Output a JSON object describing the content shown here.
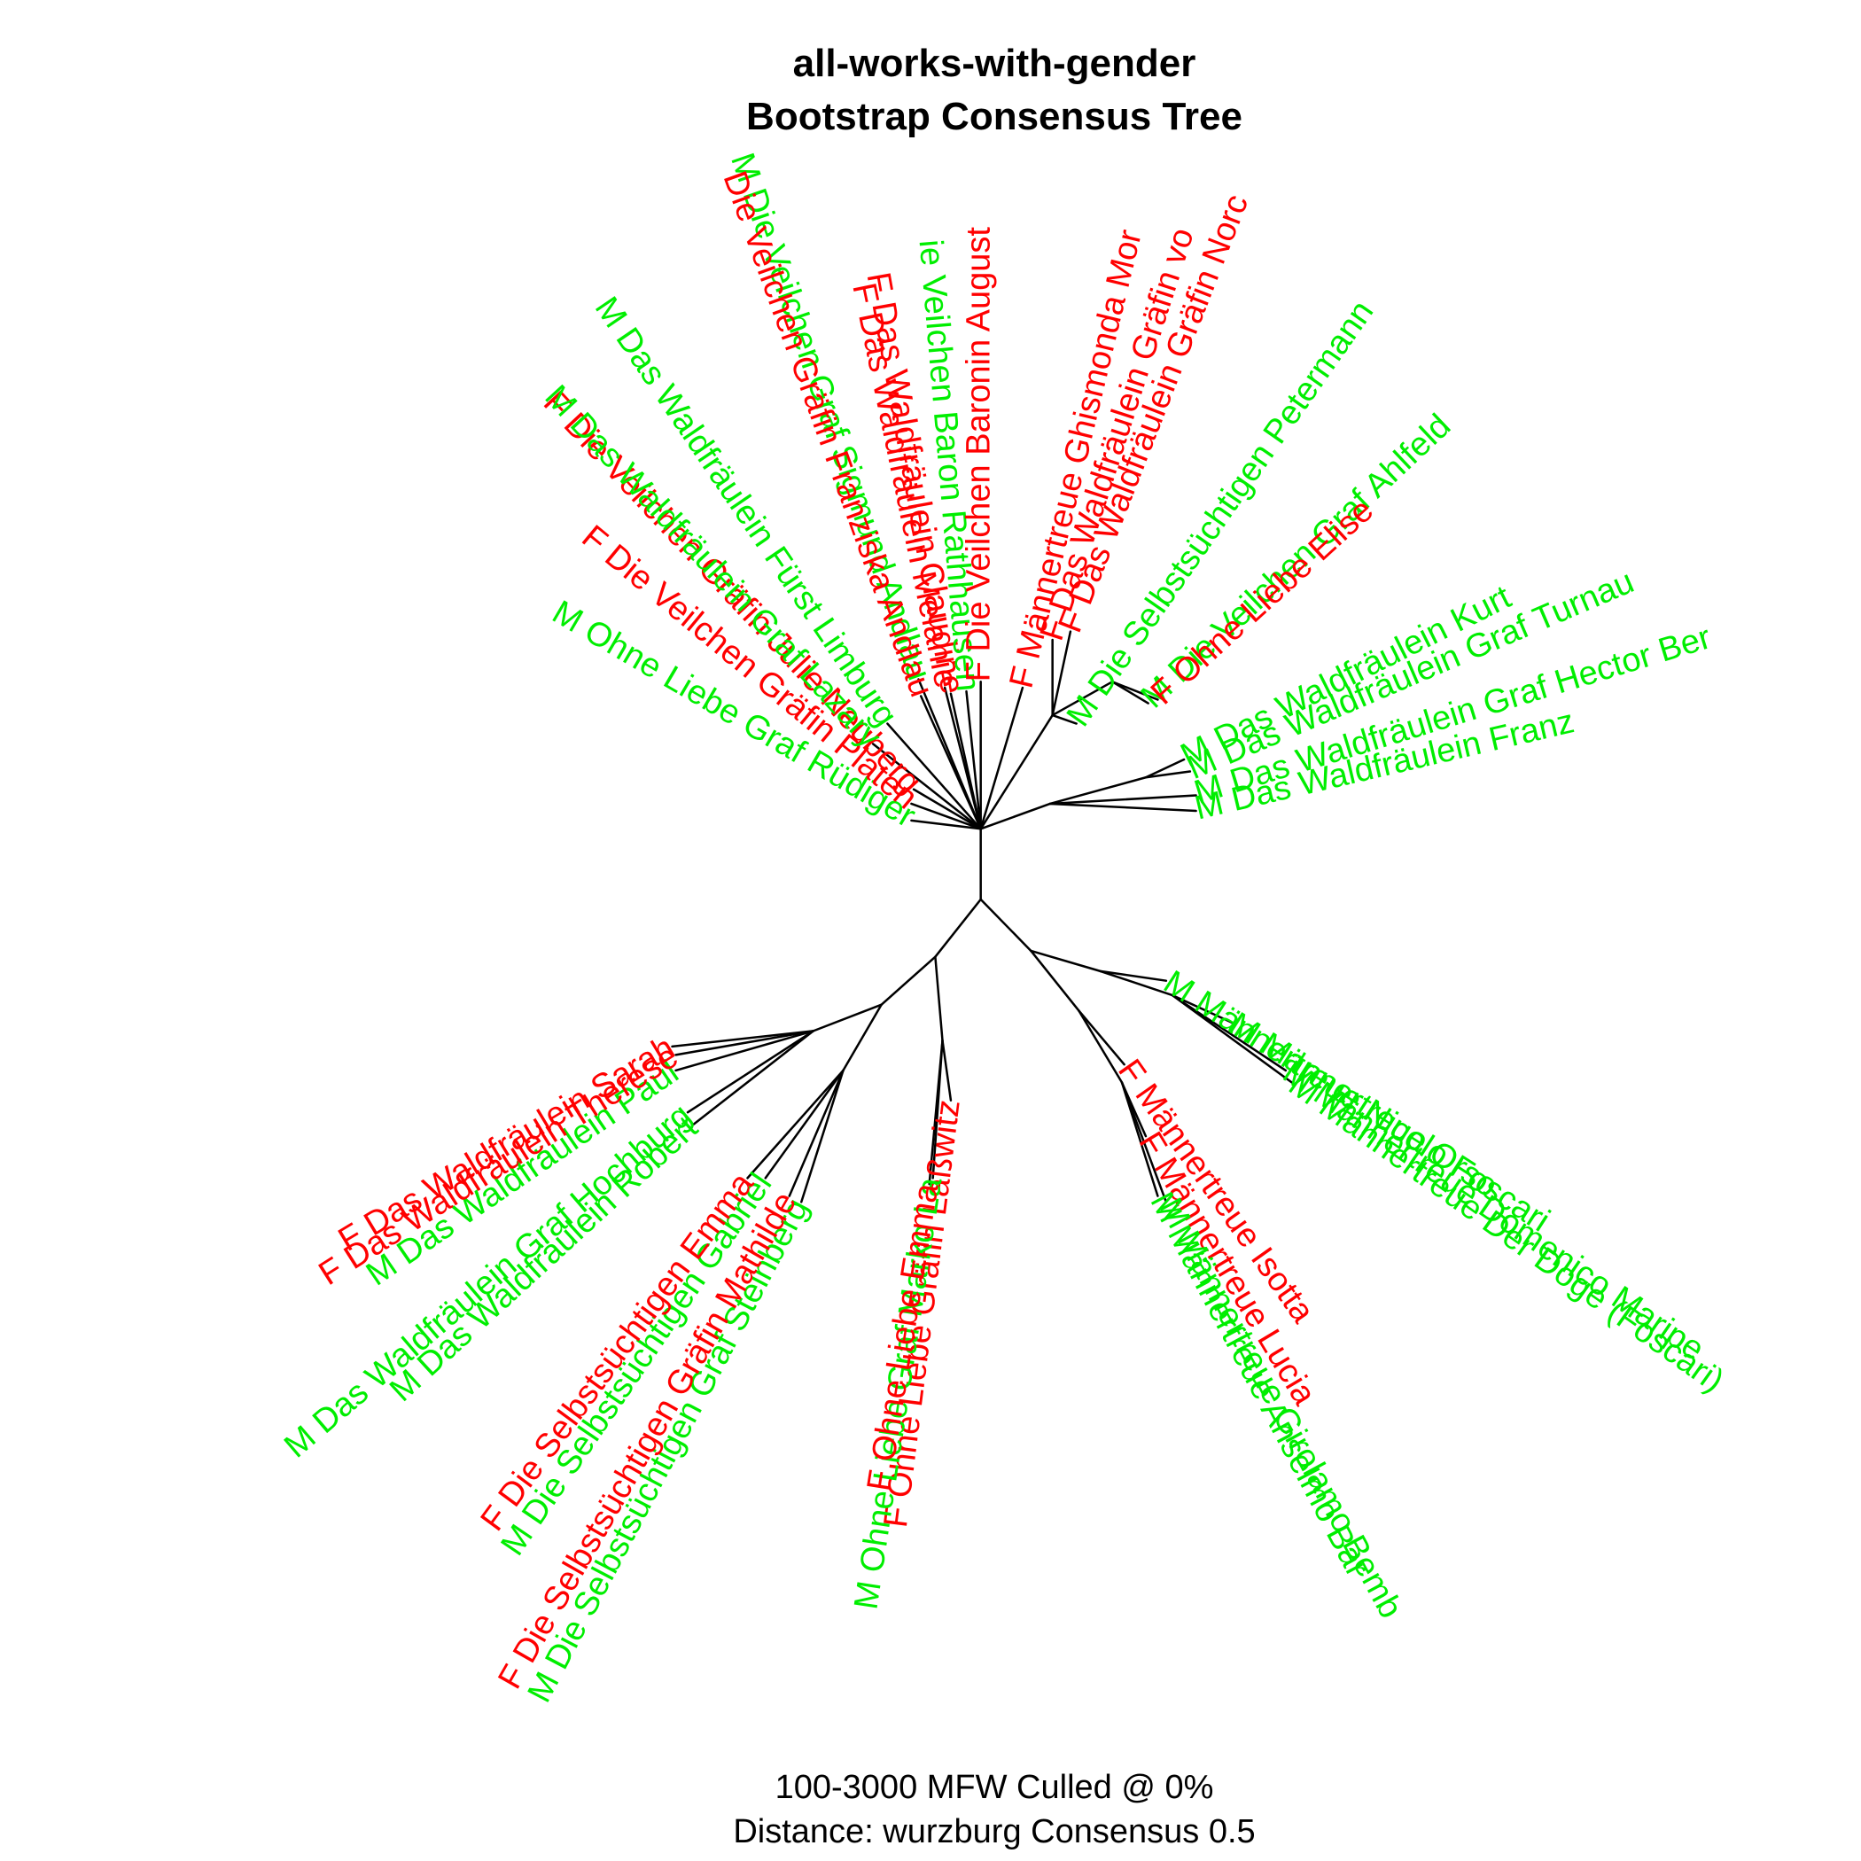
{
  "title": {
    "line1": "all-works-with-gender",
    "line2": "Bootstrap Consensus Tree"
  },
  "footer": {
    "line1": "100-3000 MFW  Culled @ 0%",
    "line2": "Distance: wurzburg Consensus 0.5"
  },
  "colors": {
    "F": "#ff0000",
    "M": "#00ee00",
    "branch": "#000000"
  },
  "tips": [
    {
      "label": "M Ohne Liebe Graf Rüdiger",
      "gender": "M"
    },
    {
      "label": "F Die Veilchen Gräfin Platen",
      "gender": "F"
    },
    {
      "label": "F Die Veilchen Gräfin Julie Neuberg",
      "gender": "F"
    },
    {
      "label": "M Das Waldfräulein Graf Lazary",
      "gender": "M"
    },
    {
      "label": "M Das Waldfräulein Fürst Limburg",
      "gender": "M"
    },
    {
      "label": "M Die Veilchen Graf Sigmund Andlau",
      "gender": "M"
    },
    {
      "label": "Die Veilchen Gräfin Franziska Andlau",
      "gender": "F"
    },
    {
      "label": "F Das Waldfräulein Melanie",
      "gender": "F"
    },
    {
      "label": "F Das Waldfräulein Claudine",
      "gender": "F"
    },
    {
      "label": "ie Veilchen Baron Rathhausen",
      "gender": "M"
    },
    {
      "label": "F Die Veilchen Baronin August",
      "gender": "F"
    },
    {
      "label": "F Männertreue Ghismonda Mor",
      "gender": "F"
    },
    {
      "label": "F Das Waldfräulein Gräfin vo",
      "gender": "F"
    },
    {
      "label": "F Das Waldfräulein Gräfin Norc",
      "gender": "F"
    },
    {
      "label": "M Die Selbstsüchtigen Petermann",
      "gender": "M"
    },
    {
      "label": "M Die Veilchen Graf Ahlfeld",
      "gender": "M"
    },
    {
      "label": "F Ohne Liebe Elise",
      "gender": "F"
    },
    {
      "label": "M Das Waldfräulein Kurt",
      "gender": "M"
    },
    {
      "label": "M Das Waldfräulein Graf Turnau",
      "gender": "M"
    },
    {
      "label": "M Das Waldfräulein Graf Hector Ber",
      "gender": "M"
    },
    {
      "label": "M Das Waldfräulein Franz",
      "gender": "M"
    },
    {
      "label": "M Männertreue Nicolo Foscari",
      "gender": "M"
    },
    {
      "label": "M Männertreue Orso",
      "gender": "M"
    },
    {
      "label": "M Männertreue Domenico Maripe",
      "gender": "M"
    },
    {
      "label": "M Männertreue Der Doge (Foscari)",
      "gender": "M"
    },
    {
      "label": "F Männertreue Isotta",
      "gender": "F"
    },
    {
      "label": "F Männertreue Lucia",
      "gender": "F"
    },
    {
      "label": "M Männertreue Girolamo Bemb",
      "gender": "M"
    },
    {
      "label": "M Männertreue Anselmo Bar",
      "gender": "M"
    },
    {
      "label": "F Ohne Liebe Gräfin Laßwitz",
      "gender": "F"
    },
    {
      "label": "M Ohne Liebe Graf Marko La",
      "gender": "M"
    },
    {
      "label": "F Ohne Liebe Emma",
      "gender": "F"
    },
    {
      "label": "M Die Selbstsüchtigen Graf Steinberg",
      "gender": "M"
    },
    {
      "label": "F Die Selbstsüchtigen Gräfin Mathilde",
      "gender": "F"
    },
    {
      "label": "M Die Selbstsüchtigen Gabriel",
      "gender": "M"
    },
    {
      "label": "F Die Selbstsüchtigen Emma",
      "gender": "F"
    },
    {
      "label": "M Das Waldfräulein Robert",
      "gender": "M"
    },
    {
      "label": "M Das Waldfräulein Graf Hochburg",
      "gender": "M"
    },
    {
      "label": "M Das Waldfräulein Paul",
      "gender": "M"
    },
    {
      "label": "F Das Waldfräulein Therese",
      "gender": "F"
    },
    {
      "label": "F Das Waldfräulein Sarah",
      "gender": "F"
    }
  ]
}
